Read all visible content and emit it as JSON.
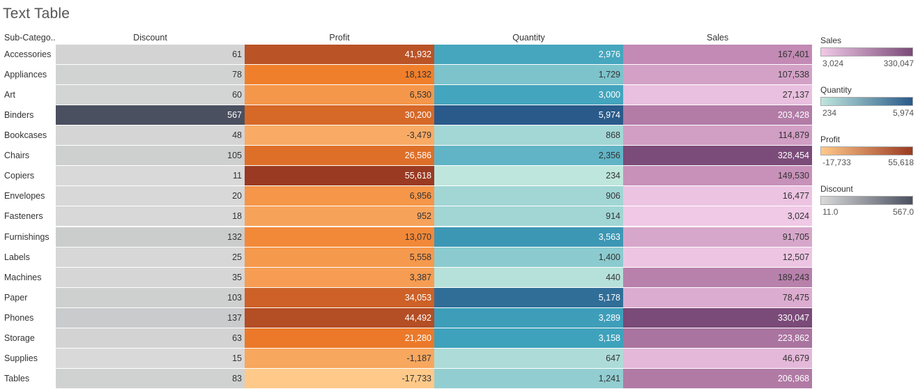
{
  "title": "Text Table",
  "legends": [
    {
      "key": "sales",
      "title": "Sales",
      "min_label": "3,024",
      "max_label": "330,047",
      "colors": [
        "#f0c9e6",
        "#7a4a78"
      ]
    },
    {
      "key": "quantity",
      "title": "Quantity",
      "min_label": "234",
      "max_label": "5,974",
      "colors": [
        "#bfe6dc",
        "#2a5a8a"
      ]
    },
    {
      "key": "profit",
      "title": "Profit",
      "min_label": "-17,733",
      "max_label": "55,618",
      "colors": [
        "#ffc98a",
        "#9a3a22"
      ]
    },
    {
      "key": "discount",
      "title": "Discount",
      "min_label": "11.0",
      "max_label": "567.0",
      "colors": [
        "#d9d9d9",
        "#4a5060"
      ]
    }
  ],
  "chart_data": {
    "type": "table",
    "row_header": "Sub-Catego..",
    "columns": [
      "Discount",
      "Profit",
      "Quantity",
      "Sales"
    ],
    "rows": [
      {
        "name": "Accessories",
        "discount": 61,
        "profit": 41932,
        "quantity": 2976,
        "sales": 167401
      },
      {
        "name": "Appliances",
        "discount": 78,
        "profit": 18132,
        "quantity": 1729,
        "sales": 107538
      },
      {
        "name": "Art",
        "discount": 60,
        "profit": 6530,
        "quantity": 3000,
        "sales": 27137
      },
      {
        "name": "Binders",
        "discount": 567,
        "profit": 30200,
        "quantity": 5974,
        "sales": 203428
      },
      {
        "name": "Bookcases",
        "discount": 48,
        "profit": -3479,
        "quantity": 868,
        "sales": 114879
      },
      {
        "name": "Chairs",
        "discount": 105,
        "profit": 26586,
        "quantity": 2356,
        "sales": 328454
      },
      {
        "name": "Copiers",
        "discount": 11,
        "profit": 55618,
        "quantity": 234,
        "sales": 149530
      },
      {
        "name": "Envelopes",
        "discount": 20,
        "profit": 6956,
        "quantity": 906,
        "sales": 16477
      },
      {
        "name": "Fasteners",
        "discount": 18,
        "profit": 952,
        "quantity": 914,
        "sales": 3024
      },
      {
        "name": "Furnishings",
        "discount": 132,
        "profit": 13070,
        "quantity": 3563,
        "sales": 91705
      },
      {
        "name": "Labels",
        "discount": 25,
        "profit": 5558,
        "quantity": 1400,
        "sales": 12507
      },
      {
        "name": "Machines",
        "discount": 35,
        "profit": 3387,
        "quantity": 440,
        "sales": 189243
      },
      {
        "name": "Paper",
        "discount": 103,
        "profit": 34053,
        "quantity": 5178,
        "sales": 78475
      },
      {
        "name": "Phones",
        "discount": 137,
        "profit": 44492,
        "quantity": 3289,
        "sales": 330047
      },
      {
        "name": "Storage",
        "discount": 63,
        "profit": 21280,
        "quantity": 3158,
        "sales": 223862
      },
      {
        "name": "Supplies",
        "discount": 15,
        "profit": -1187,
        "quantity": 647,
        "sales": 46679
      },
      {
        "name": "Tables",
        "discount": 83,
        "profit": -17733,
        "quantity": 1241,
        "sales": 206968
      }
    ],
    "color_scales": {
      "discount": {
        "min": 11,
        "max": 567,
        "stops": [
          "#d9d9d9",
          "#b8babc",
          "#4a5060"
        ]
      },
      "profit": {
        "min": -17733,
        "max": 55618,
        "stops": [
          "#ffc98a",
          "#f07d2a",
          "#9a3a22"
        ]
      },
      "quantity": {
        "min": 234,
        "max": 5974,
        "stops": [
          "#bfe6dc",
          "#3fa3bd",
          "#2a5a8a"
        ]
      },
      "sales": {
        "min": 3024,
        "max": 330047,
        "stops": [
          "#f0c9e6",
          "#c28ab4",
          "#7a4a78"
        ]
      }
    }
  }
}
